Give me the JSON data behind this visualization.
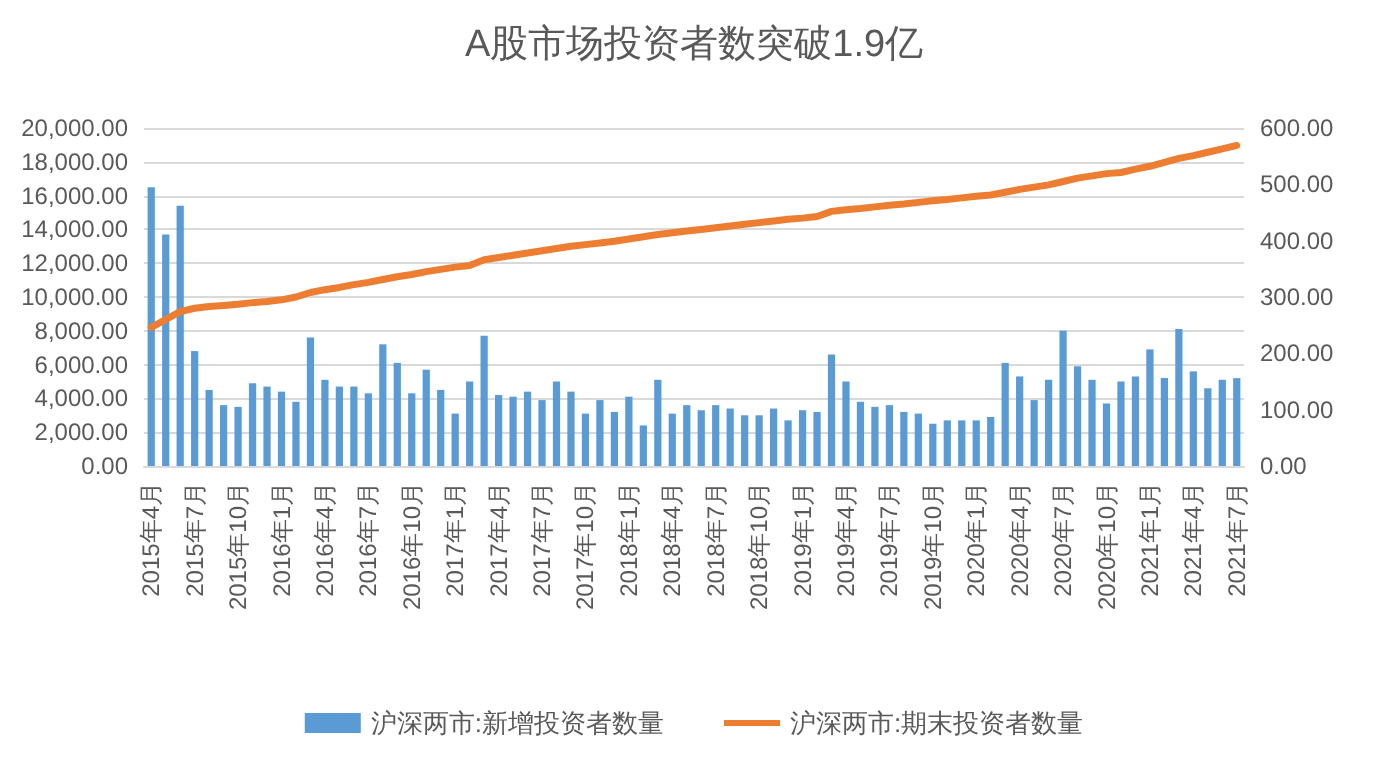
{
  "chart_data": {
    "type": "bar",
    "title": "A股市场投资者数突破1.9亿",
    "categories": [
      "2015年4月",
      null,
      null,
      "2015年7月",
      null,
      null,
      "2015年10月",
      null,
      null,
      "2016年1月",
      null,
      null,
      "2016年4月",
      null,
      null,
      "2016年7月",
      null,
      null,
      "2016年10月",
      null,
      null,
      "2017年1月",
      null,
      null,
      "2017年4月",
      null,
      null,
      "2017年7月",
      null,
      null,
      "2017年10月",
      null,
      null,
      "2018年1月",
      null,
      null,
      "2018年4月",
      null,
      null,
      "2018年7月",
      null,
      null,
      "2018年10月",
      null,
      null,
      "2019年1月",
      null,
      null,
      "2019年4月",
      null,
      null,
      "2019年7月",
      null,
      null,
      "2019年10月",
      null,
      null,
      "2020年1月",
      null,
      null,
      "2020年4月",
      null,
      null,
      "2020年7月",
      null,
      null,
      "2020年10月",
      null,
      null,
      "2021年1月",
      null,
      null,
      "2021年4月",
      null,
      null,
      "2021年7月"
    ],
    "series": [
      {
        "name": "沪深两市:新增投资者数量",
        "color": "#5b9bd5",
        "values": [
          16500,
          13700,
          15400,
          6800,
          4500,
          3600,
          3500,
          4900,
          4700,
          4400,
          3800,
          7600,
          5100,
          4700,
          4700,
          4300,
          7200,
          6100,
          4300,
          5700,
          4500,
          3100,
          5000,
          7700,
          4200,
          4100,
          4400,
          3900,
          5000,
          4400,
          3100,
          3900,
          3200,
          4100,
          2400,
          5100,
          3100,
          3600,
          3300,
          3600,
          3400,
          3000,
          3000,
          3400,
          2700,
          3300,
          3200,
          6600,
          5000,
          3800,
          3500,
          3600,
          3200,
          3100,
          2500,
          2700,
          2700,
          2700,
          2900,
          6100,
          5300,
          3900,
          5100,
          8000,
          5900,
          5100,
          3700,
          5000,
          5300,
          6900,
          5200,
          8100,
          5600,
          4600,
          5100,
          5200
        ]
      },
      {
        "name": "沪深两市:期末投资者数量",
        "type": "line",
        "axis": "y2",
        "color": "#ed7d31",
        "marker": "none",
        "line_style": "solid",
        "values": [
          246,
          260,
          274,
          280,
          283,
          285,
          287,
          290,
          292,
          295,
          300,
          308,
          313,
          317,
          322,
          326,
          331,
          336,
          340,
          345,
          349,
          353,
          356,
          366,
          370,
          374,
          378,
          382,
          386,
          390,
          393,
          396,
          399,
          403,
          407,
          411,
          414,
          417,
          420,
          423,
          426,
          429,
          432,
          435,
          438,
          440,
          443,
          452,
          455,
          457,
          460,
          463,
          465,
          468,
          471,
          473,
          476,
          479,
          481,
          486,
          491,
          495,
          499,
          505,
          511,
          515,
          519,
          521,
          527,
          532,
          539,
          546,
          551,
          557,
          563,
          569
        ]
      }
    ],
    "ylim": [
      0,
      20000
    ],
    "yticks": [
      {
        "value": 0,
        "label": "0.00"
      },
      {
        "value": 2000,
        "label": "2,000.00"
      },
      {
        "value": 4000,
        "label": "4,000.00"
      },
      {
        "value": 6000,
        "label": "6,000.00"
      },
      {
        "value": 8000,
        "label": "8,000.00"
      },
      {
        "value": 10000,
        "label": "10,000.00"
      },
      {
        "value": 12000,
        "label": "12,000.00"
      },
      {
        "value": 14000,
        "label": "14,000.00"
      },
      {
        "value": 16000,
        "label": "16,000.00"
      },
      {
        "value": 18000,
        "label": "18,000.00"
      },
      {
        "value": 20000,
        "label": "20,000.00"
      }
    ],
    "y2lim": [
      0,
      600
    ],
    "y2ticks": [
      {
        "value": 0,
        "label": "0.00"
      },
      {
        "value": 100,
        "label": "100.00"
      },
      {
        "value": 200,
        "label": "200.00"
      },
      {
        "value": 300,
        "label": "300.00"
      },
      {
        "value": 400,
        "label": "400.00"
      },
      {
        "value": 500,
        "label": "500.00"
      },
      {
        "value": 600,
        "label": "600.00"
      }
    ],
    "grid": "y",
    "legend": "bottom"
  }
}
